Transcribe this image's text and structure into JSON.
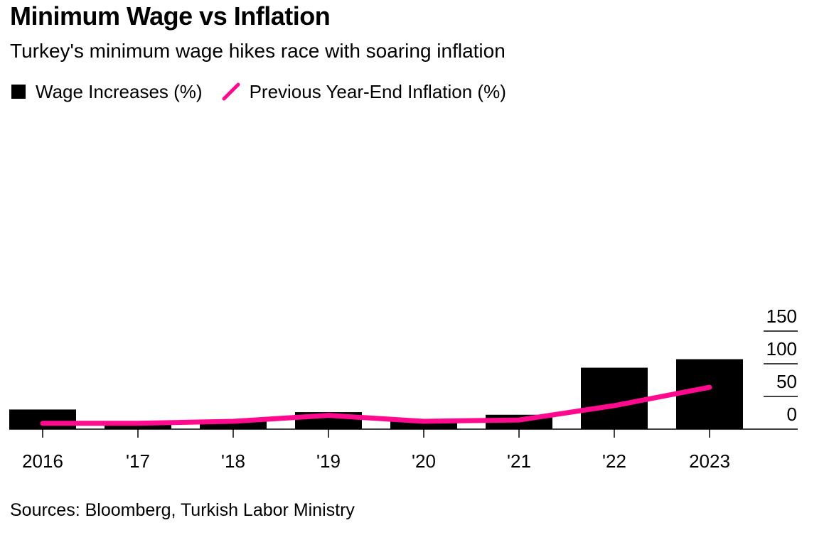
{
  "title": "Minimum Wage vs Inflation",
  "subtitle": "Turkey's minimum wage hikes race with soaring inflation",
  "source": "Sources: Bloomberg, Turkish Labor Ministry",
  "colors": {
    "bars": "#000000",
    "line": "#ff0a8f"
  },
  "legend_icons": {
    "bar": "square-swatch-icon",
    "line": "pink-line-swatch-icon"
  },
  "chart_data": {
    "type": "bar",
    "categories": [
      "2016",
      "'17",
      "'18",
      "'19",
      "'20",
      "'21",
      "'22",
      "2023"
    ],
    "series": [
      {
        "name": "Wage Increases (%)",
        "type": "bar",
        "values": [
          30,
          8,
          14,
          26,
          15,
          22,
          94,
          107
        ]
      },
      {
        "name": "Previous Year-End Inflation (%)",
        "type": "line",
        "values": [
          9,
          9,
          12,
          21,
          12,
          14,
          36,
          64
        ]
      }
    ],
    "y_ticks": [
      0,
      50,
      100,
      150
    ],
    "y_tick_labels": [
      "0",
      "50",
      "100",
      "150"
    ],
    "ylim": [
      0,
      150
    ],
    "y_axis_position": "right",
    "legend_placement": "top-left",
    "grid": false
  }
}
